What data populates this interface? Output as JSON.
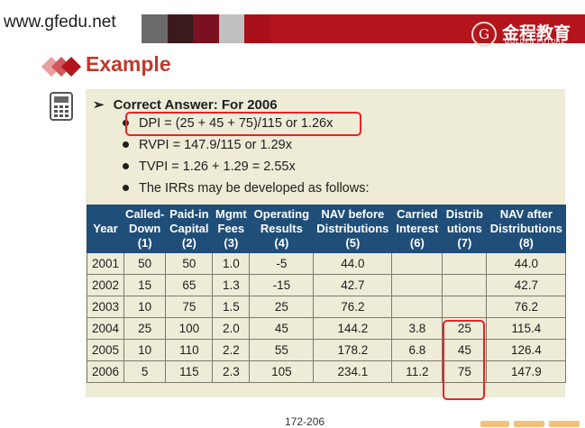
{
  "header": {
    "site": "www.gfedu.net",
    "logo_cn": "金程教育",
    "logo_en": "GOLDEN FUTURE",
    "logo_mark": "G"
  },
  "title": "Example",
  "content": {
    "heading": "Correct Answer: For 2006",
    "bullets": [
      "DPI = (25 + 45 + 75)/115 or 1.26x",
      "RVPI = 147.9/115 or 1.29x",
      "TVPI = 1.26 + 1.29 = 2.55x",
      "The IRRs may be developed as follows:"
    ]
  },
  "table": {
    "headers": [
      [
        "Year"
      ],
      [
        "Called-",
        "Down",
        "(1)"
      ],
      [
        "Paid-in",
        "Capital",
        "(2)"
      ],
      [
        "Mgmt",
        "Fees",
        "(3)"
      ],
      [
        "Operating",
        "Results",
        "(4)"
      ],
      [
        "NAV before",
        "Distributions",
        "(5)"
      ],
      [
        "Carried",
        "Interest",
        "(6)"
      ],
      [
        "Distrib",
        "utions",
        "(7)"
      ],
      [
        "NAV after",
        "Distributions",
        "(8)"
      ]
    ],
    "rows": [
      [
        "2001",
        "50",
        "50",
        "1.0",
        "-5",
        "44.0",
        "",
        "",
        "44.0"
      ],
      [
        "2002",
        "15",
        "65",
        "1.3",
        "-15",
        "42.7",
        "",
        "",
        "42.7"
      ],
      [
        "2003",
        "10",
        "75",
        "1.5",
        "25",
        "76.2",
        "",
        "",
        "76.2"
      ],
      [
        "2004",
        "25",
        "100",
        "2.0",
        "45",
        "144.2",
        "3.8",
        "25",
        "115.4"
      ],
      [
        "2005",
        "10",
        "110",
        "2.2",
        "55",
        "178.2",
        "6.8",
        "45",
        "126.4"
      ],
      [
        "2006",
        "5",
        "115",
        "2.3",
        "105",
        "234.1",
        "11.2",
        "75",
        "147.9"
      ]
    ]
  },
  "footer": {
    "page": "172-206"
  },
  "colors": {
    "brand_red": "#b4141b",
    "title_red": "#c0392b",
    "table_header": "#1f4e79",
    "panel_bg": "#eeebd7",
    "highlight": "#e52424"
  }
}
